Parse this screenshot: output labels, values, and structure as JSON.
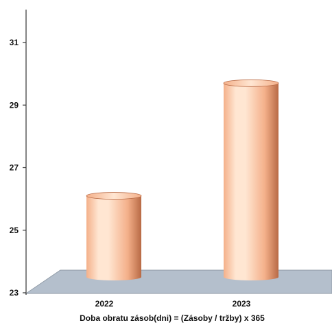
{
  "chart_data": {
    "type": "bar",
    "style": "3d-cylinder",
    "categories": [
      "2022",
      "2023"
    ],
    "values": [
      26.1,
      29.7
    ],
    "title": "",
    "xlabel": "Doba obratu zásob(dni) = (Zásoby / tržby) x 365",
    "ylabel": "",
    "ylim": [
      23,
      32
    ],
    "yticks": [
      23,
      25,
      27,
      29,
      31
    ],
    "grid": false,
    "legend": "none",
    "colors": {
      "bar_light": "#ffe6d2",
      "bar_mid": "#f4b08a",
      "bar_dark": "#b86a45",
      "floor": "#b4bfcc",
      "axis": "#333333"
    }
  }
}
